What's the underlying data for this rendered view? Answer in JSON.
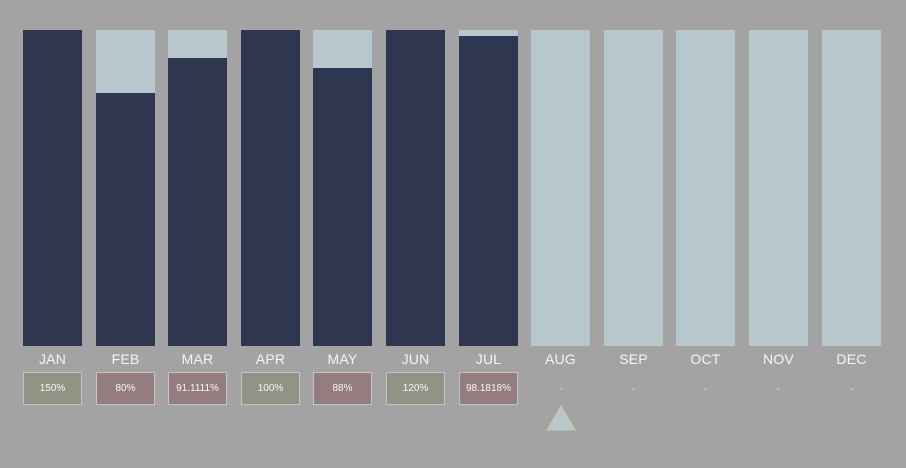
{
  "chart_data": {
    "type": "bar",
    "categories": [
      "JAN",
      "FEB",
      "MAR",
      "APR",
      "MAY",
      "JUN",
      "JUL",
      "AUG",
      "SEP",
      "OCT",
      "NOV",
      "DEC"
    ],
    "values": [
      1.0,
      0.8,
      0.911111,
      1.0,
      0.88,
      1.0,
      0.981818,
      null,
      null,
      null,
      null,
      null
    ],
    "labels": [
      "150%",
      "80%",
      "91.1111%",
      "100%",
      "88%",
      "120%",
      "98.1818%",
      "-",
      "-",
      "-",
      "-",
      "-"
    ],
    "ylim": [
      0,
      1
    ],
    "current_month": "AUG"
  },
  "colors": {
    "background": "#a3a3a3",
    "bar_fill": "#2e3650",
    "bar_track": "#b6c8cb",
    "badge_over": "#8f9484",
    "badge_under": "#957d7f",
    "marker": "#b6c8cb"
  },
  "icons": {
    "current_month_marker": "triangle-up-icon"
  }
}
